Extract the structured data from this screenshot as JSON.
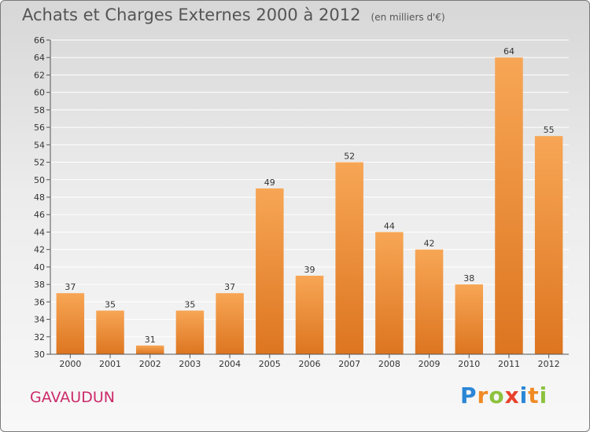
{
  "title": "Achats et Charges Externes 2000 à 2012",
  "unit": "(en milliers d'€)",
  "commune": "GAVAUDUN",
  "brand": "Proxiti",
  "colors": {
    "bar_light": "#f7a655",
    "bar_dark": "#dd7520",
    "axis": "#555555",
    "grid": "#ffffff"
  },
  "chart_data": {
    "type": "bar",
    "title": "Achats et Charges Externes 2000 à 2012",
    "ylabel": "(en milliers d'€)",
    "categories": [
      "2000",
      "2001",
      "2002",
      "2003",
      "2004",
      "2005",
      "2006",
      "2007",
      "2008",
      "2009",
      "2010",
      "2011",
      "2012"
    ],
    "values": [
      37,
      35,
      31,
      35,
      37,
      49,
      39,
      52,
      44,
      42,
      38,
      64,
      55
    ],
    "ylim": [
      30,
      66
    ],
    "yticks": [
      30,
      32,
      34,
      36,
      38,
      40,
      42,
      44,
      46,
      48,
      50,
      52,
      54,
      56,
      58,
      60,
      62,
      64,
      66
    ],
    "grid": true,
    "legend": "none"
  }
}
